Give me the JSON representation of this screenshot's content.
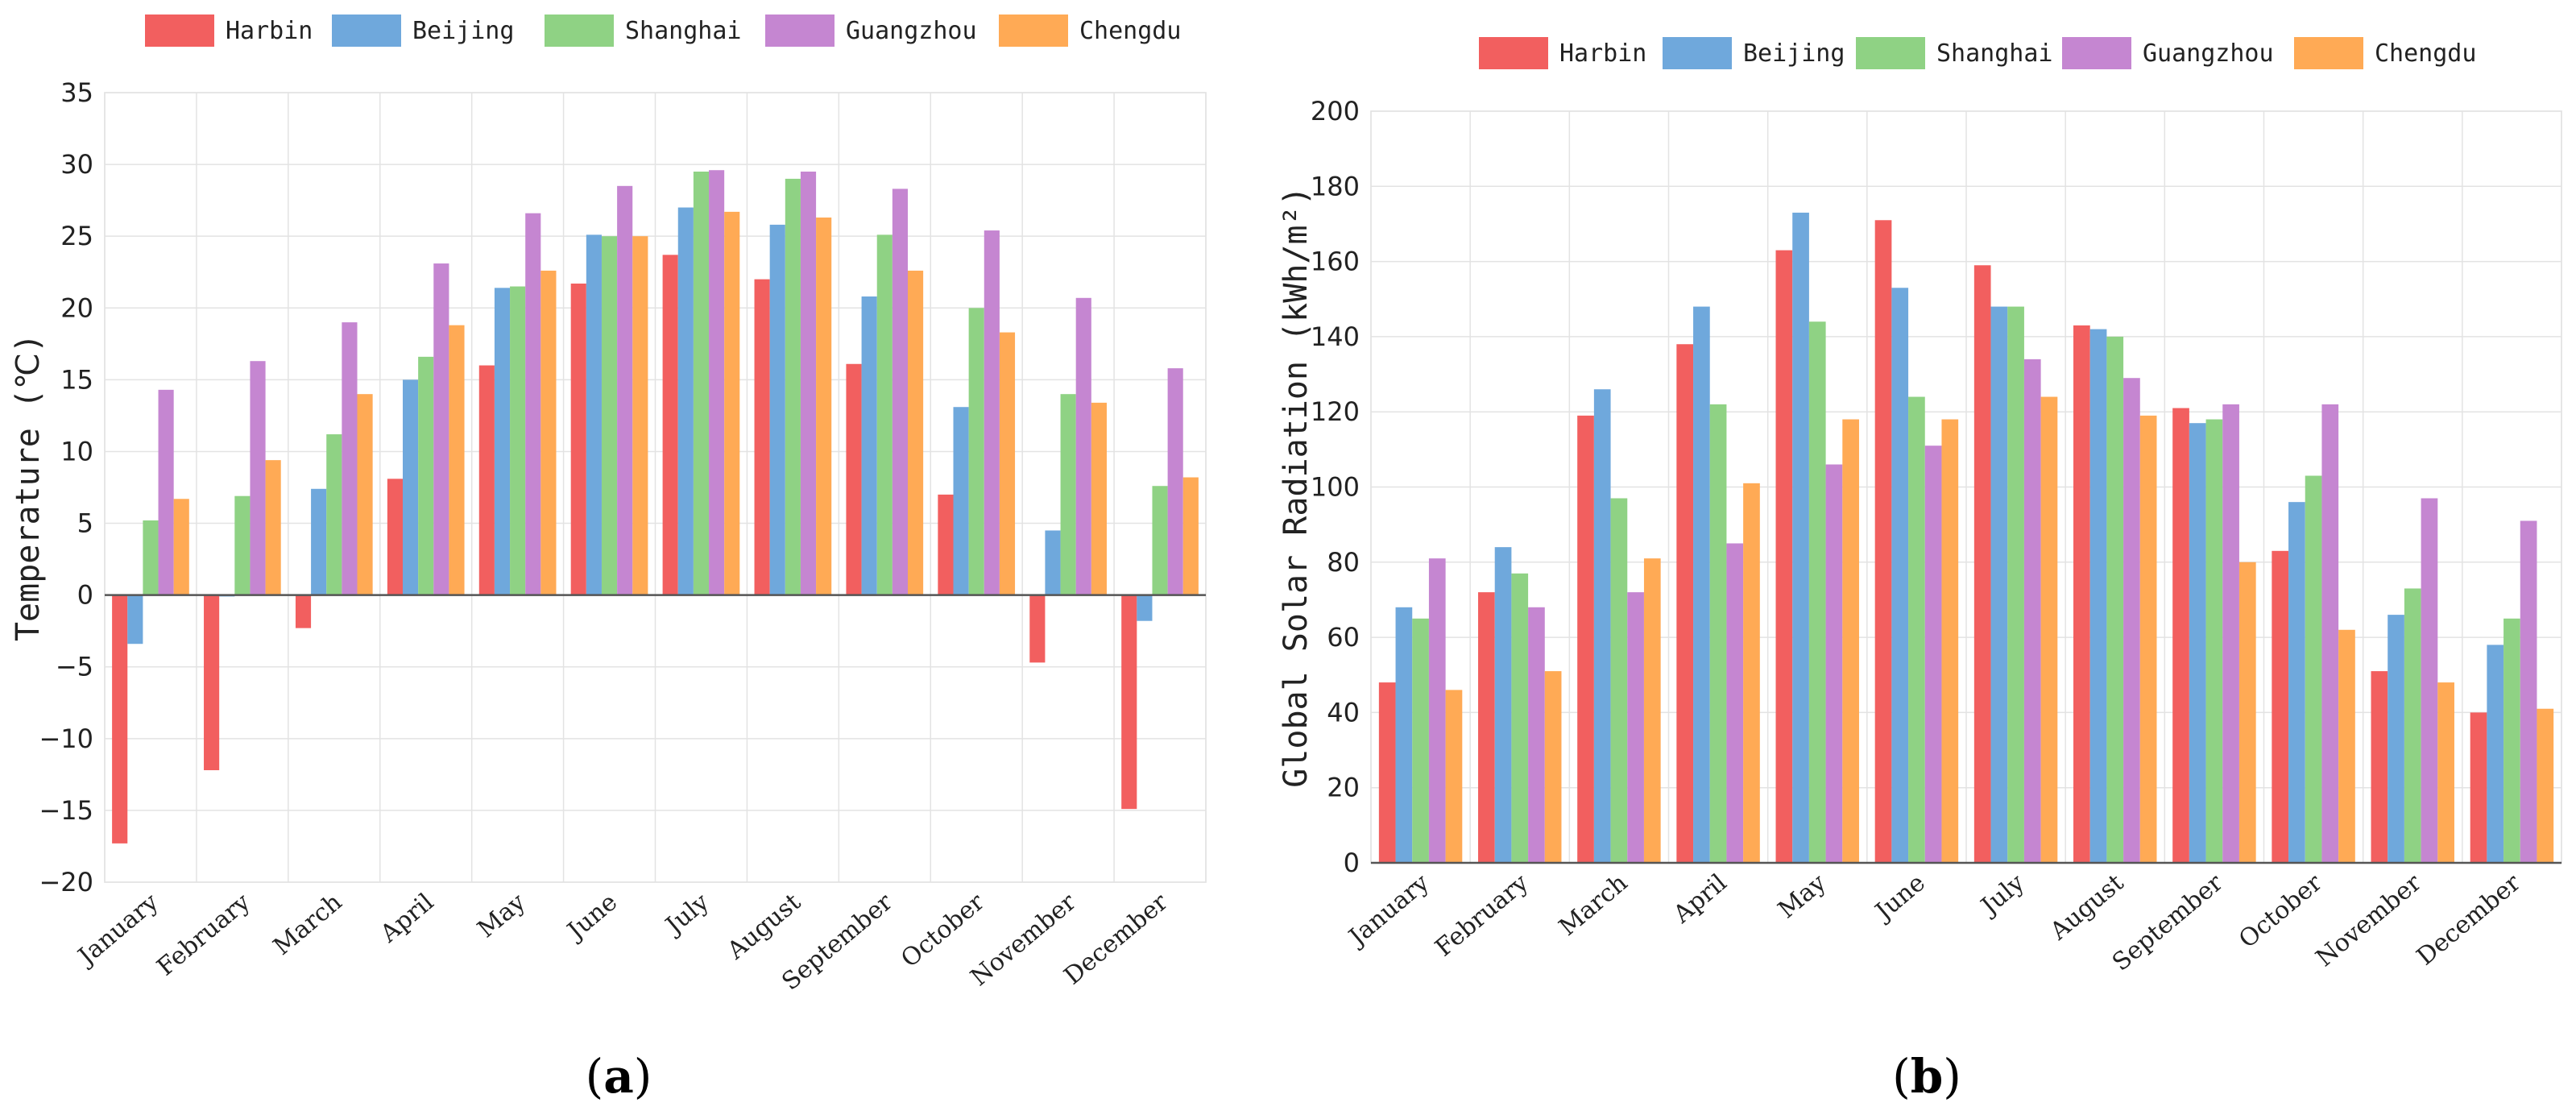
{
  "captions": {
    "a_prefix": "(",
    "a_letter": "a",
    "a_suffix": ")",
    "b_prefix": "(",
    "b_letter": "b",
    "b_suffix": ")"
  },
  "colors": {
    "Harbin": "#F25F5F",
    "Beijing": "#6FA8DC",
    "Shanghai": "#8FD284",
    "Guangzhou": "#C586D1",
    "Chengdu": "#FFAA55"
  },
  "chart_data": [
    {
      "id": "a",
      "type": "bar",
      "title": "",
      "xlabel": "",
      "ylabel": "Temperature (℃)",
      "ylim": [
        -20,
        35
      ],
      "yticks": [
        -20,
        -15,
        -10,
        -5,
        0,
        5,
        10,
        15,
        20,
        25,
        30,
        35
      ],
      "grid": true,
      "legend": "top",
      "categories": [
        "January",
        "February",
        "March",
        "April",
        "May",
        "June",
        "July",
        "August",
        "September",
        "October",
        "November",
        "December"
      ],
      "series": [
        {
          "name": "Harbin",
          "values": [
            -17.3,
            -12.2,
            -2.3,
            8.1,
            16.0,
            21.7,
            23.7,
            22.0,
            16.1,
            7.0,
            -4.7,
            -14.9
          ]
        },
        {
          "name": "Beijing",
          "values": [
            -3.4,
            -0.1,
            7.4,
            15.0,
            21.4,
            25.1,
            27.0,
            25.8,
            20.8,
            13.1,
            4.5,
            -1.8
          ]
        },
        {
          "name": "Shanghai",
          "values": [
            5.2,
            6.9,
            11.2,
            16.6,
            21.5,
            25.0,
            29.5,
            29.0,
            25.1,
            20.0,
            14.0,
            7.6
          ]
        },
        {
          "name": "Guangzhou",
          "values": [
            14.3,
            16.3,
            19.0,
            23.1,
            26.6,
            28.5,
            29.6,
            29.5,
            28.3,
            25.4,
            20.7,
            15.8
          ]
        },
        {
          "name": "Chengdu",
          "values": [
            6.7,
            9.4,
            14.0,
            18.8,
            22.6,
            25.0,
            26.7,
            26.3,
            22.6,
            18.3,
            13.4,
            8.2
          ]
        }
      ]
    },
    {
      "id": "b",
      "type": "bar",
      "title": "",
      "xlabel": "",
      "ylabel": "Global Solar Radiation (kWh/m²)",
      "ylim": [
        0,
        200
      ],
      "yticks": [
        0,
        20,
        40,
        60,
        80,
        100,
        120,
        140,
        160,
        180,
        200
      ],
      "grid": true,
      "legend": "top",
      "categories": [
        "January",
        "February",
        "March",
        "April",
        "May",
        "June",
        "July",
        "August",
        "September",
        "October",
        "November",
        "December"
      ],
      "series": [
        {
          "name": "Harbin",
          "values": [
            48,
            72,
            119,
            138,
            163,
            171,
            159,
            143,
            121,
            83,
            51,
            40
          ]
        },
        {
          "name": "Beijing",
          "values": [
            68,
            84,
            126,
            148,
            173,
            153,
            148,
            142,
            117,
            96,
            66,
            58
          ]
        },
        {
          "name": "Shanghai",
          "values": [
            65,
            77,
            97,
            122,
            144,
            124,
            148,
            140,
            118,
            103,
            73,
            65
          ]
        },
        {
          "name": "Guangzhou",
          "values": [
            81,
            68,
            72,
            85,
            106,
            111,
            134,
            129,
            122,
            122,
            97,
            91
          ]
        },
        {
          "name": "Chengdu",
          "values": [
            46,
            51,
            81,
            101,
            118,
            118,
            124,
            119,
            80,
            62,
            48,
            41
          ]
        }
      ]
    }
  ]
}
